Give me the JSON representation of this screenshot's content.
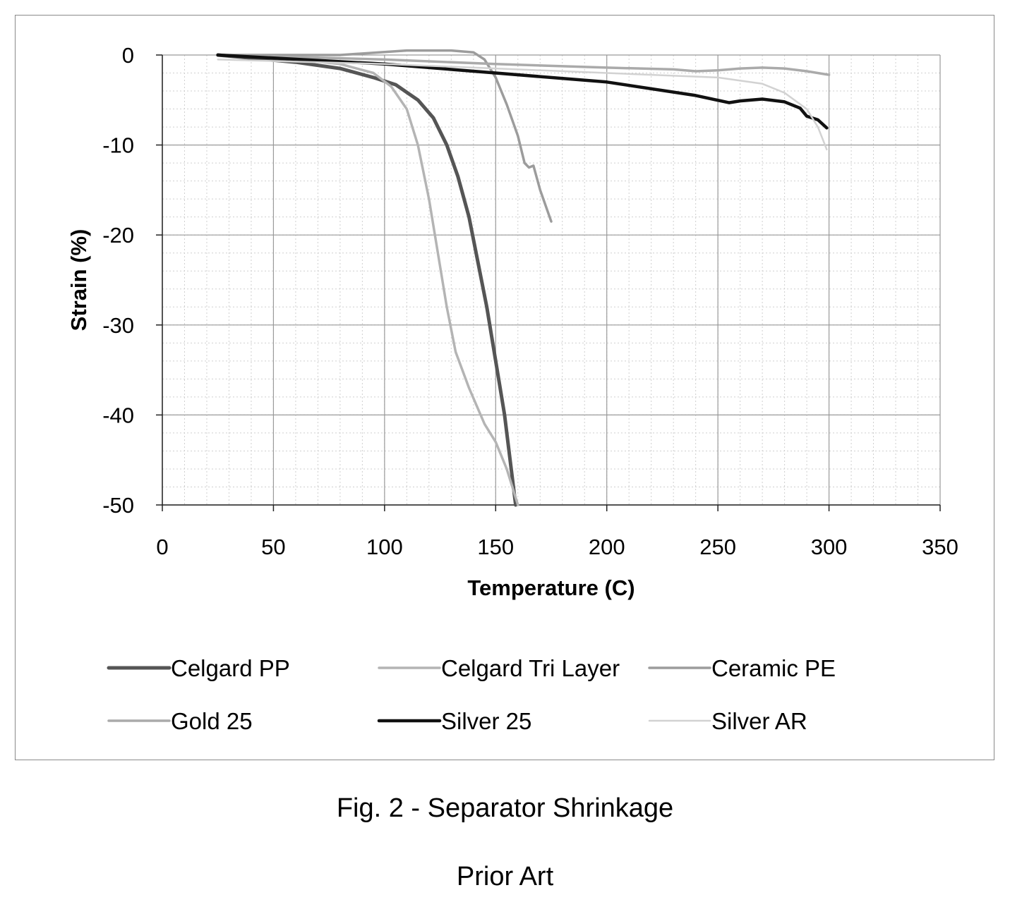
{
  "chart_data": {
    "type": "line",
    "xlabel": "Temperature (C)",
    "ylabel": "Strain (%)",
    "xlim": [
      0,
      350
    ],
    "ylim": [
      -50,
      0
    ],
    "x_ticks": [
      0,
      50,
      100,
      150,
      200,
      250,
      300,
      350
    ],
    "y_ticks": [
      0,
      -10,
      -20,
      -30,
      -40,
      -50
    ],
    "grid": true,
    "legend_position": "bottom",
    "series": [
      {
        "name": "Celgard PP",
        "color": "#555555",
        "x": [
          25,
          60,
          80,
          95,
          105,
          115,
          122,
          128,
          133,
          138,
          142,
          146,
          150,
          154,
          157,
          159
        ],
        "y": [
          0,
          -0.8,
          -1.5,
          -2.5,
          -3.3,
          -5,
          -7,
          -10,
          -13.5,
          -18,
          -23,
          -28,
          -34,
          -40,
          -46,
          -50
        ]
      },
      {
        "name": "Celgard Tri Layer",
        "color": "#b4b4b4",
        "x": [
          25,
          60,
          80,
          95,
          103,
          110,
          115,
          120,
          124,
          128,
          132,
          138,
          145,
          150,
          155,
          160
        ],
        "y": [
          0,
          -0.5,
          -1,
          -2,
          -3.5,
          -6,
          -10,
          -16,
          -22,
          -28,
          -33,
          -37,
          -41,
          -43,
          -46,
          -50
        ]
      },
      {
        "name": "Ceramic PE",
        "color": "#9c9c9c",
        "x": [
          25,
          80,
          110,
          130,
          140,
          145,
          150,
          155,
          160,
          163,
          165,
          167,
          170,
          175
        ],
        "y": [
          0,
          0,
          0.5,
          0.5,
          0.3,
          -0.5,
          -2.5,
          -5.5,
          -9,
          -12,
          -12.5,
          -12.3,
          -15,
          -18.5
        ]
      },
      {
        "name": "Gold 25",
        "color": "#aaaaaa",
        "x": [
          25,
          100,
          150,
          200,
          230,
          240,
          250,
          260,
          270,
          280,
          290,
          300
        ],
        "y": [
          0,
          -0.5,
          -1,
          -1.4,
          -1.6,
          -1.8,
          -1.7,
          -1.5,
          -1.4,
          -1.5,
          -1.8,
          -2.2
        ]
      },
      {
        "name": "Silver 25",
        "color": "#111111",
        "x": [
          25,
          100,
          150,
          200,
          240,
          255,
          260,
          270,
          280,
          287,
          290,
          295,
          299
        ],
        "y": [
          0,
          -1,
          -2,
          -3,
          -4.5,
          -5.3,
          -5.1,
          -4.9,
          -5.2,
          -5.9,
          -6.8,
          -7.2,
          -8.1
        ]
      },
      {
        "name": "Silver AR",
        "color": "#d2d2d2",
        "x": [
          25,
          100,
          150,
          200,
          250,
          270,
          280,
          290,
          295,
          299
        ],
        "y": [
          -0.5,
          -1,
          -1.5,
          -2,
          -2.5,
          -3.2,
          -4.2,
          -6,
          -8,
          -10.5
        ]
      }
    ]
  },
  "caption": "Fig. 2 - Separator Shrinkage",
  "prior_art": "Prior Art"
}
